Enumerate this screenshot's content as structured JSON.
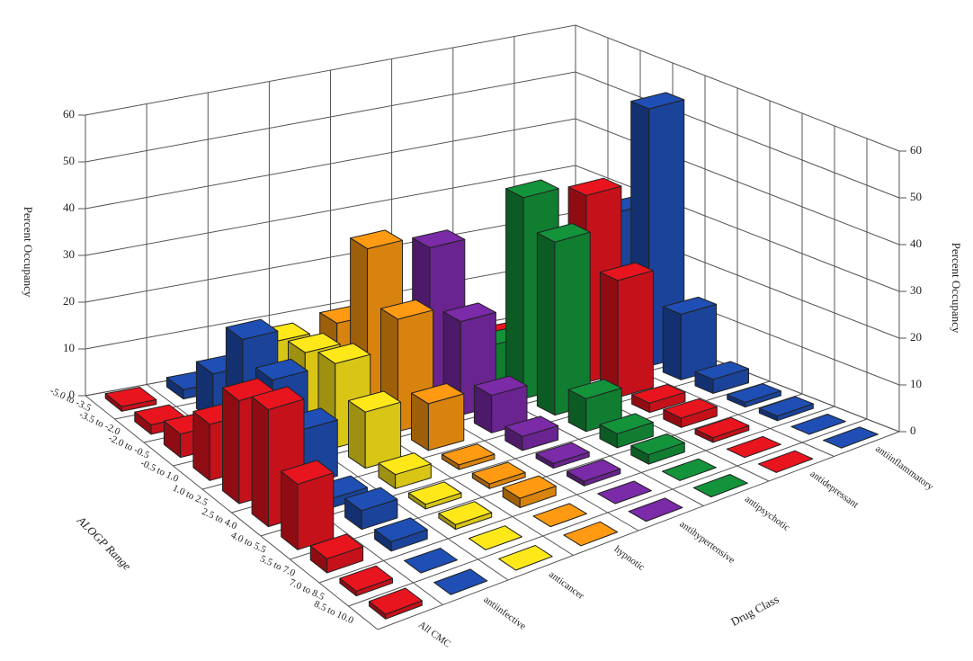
{
  "chart_data": {
    "type": "bar3d",
    "x_label": "ALOGP Range",
    "z_label": "Drug Class",
    "y_label": "Percent Occupancy",
    "categories": [
      "-5.0 to -3.5",
      "-3.5 to -2.0",
      "-2.0 to -0.5",
      "-0.5 to 1.0",
      "1.0 to 2.5",
      "2.5 to 4.0",
      "4.0 to 5.5",
      "5.5 to 7.0",
      "7.0 to 8.5",
      "8.5 to 10.0"
    ],
    "series": [
      {
        "name": "All CMC",
        "color": "#e8141e",
        "values": [
          1,
          2,
          5,
          12,
          22,
          25,
          14,
          3,
          1,
          1
        ]
      },
      {
        "name": "antiinfective",
        "color": "#1f4fb4",
        "values": [
          2,
          10,
          22,
          18,
          12,
          2,
          4,
          2,
          0,
          0
        ]
      },
      {
        "name": "anticancer",
        "color": "#ffe81a",
        "values": [
          0,
          14,
          16,
          18,
          12,
          3,
          1,
          1,
          0,
          0
        ]
      },
      {
        "name": "hypnotic",
        "color": "#ff9a12",
        "values": [
          0,
          15,
          35,
          24,
          10,
          1,
          1,
          2,
          0,
          0
        ]
      },
      {
        "name": "antihypertensive",
        "color": "#7b2aa8",
        "values": [
          0,
          1,
          32,
          20,
          8,
          3,
          1,
          1,
          0,
          0
        ]
      },
      {
        "name": "antipsychotic",
        "color": "#13933a",
        "values": [
          0,
          0,
          8,
          43,
          37,
          7,
          3,
          2,
          0,
          0
        ]
      },
      {
        "name": "antidepressant",
        "color": "#e8141e",
        "values": [
          0,
          1,
          2,
          40,
          25,
          2,
          2,
          1,
          0,
          0
        ]
      },
      {
        "name": "antiinflammatory",
        "color": "#1f4fb4",
        "values": [
          0,
          1,
          30,
          55,
          14,
          3,
          1,
          1,
          0,
          0
        ]
      }
    ],
    "ylim": [
      0,
      60
    ],
    "yticks": [
      0,
      10,
      20,
      30,
      40,
      50,
      60
    ],
    "grid": true
  }
}
